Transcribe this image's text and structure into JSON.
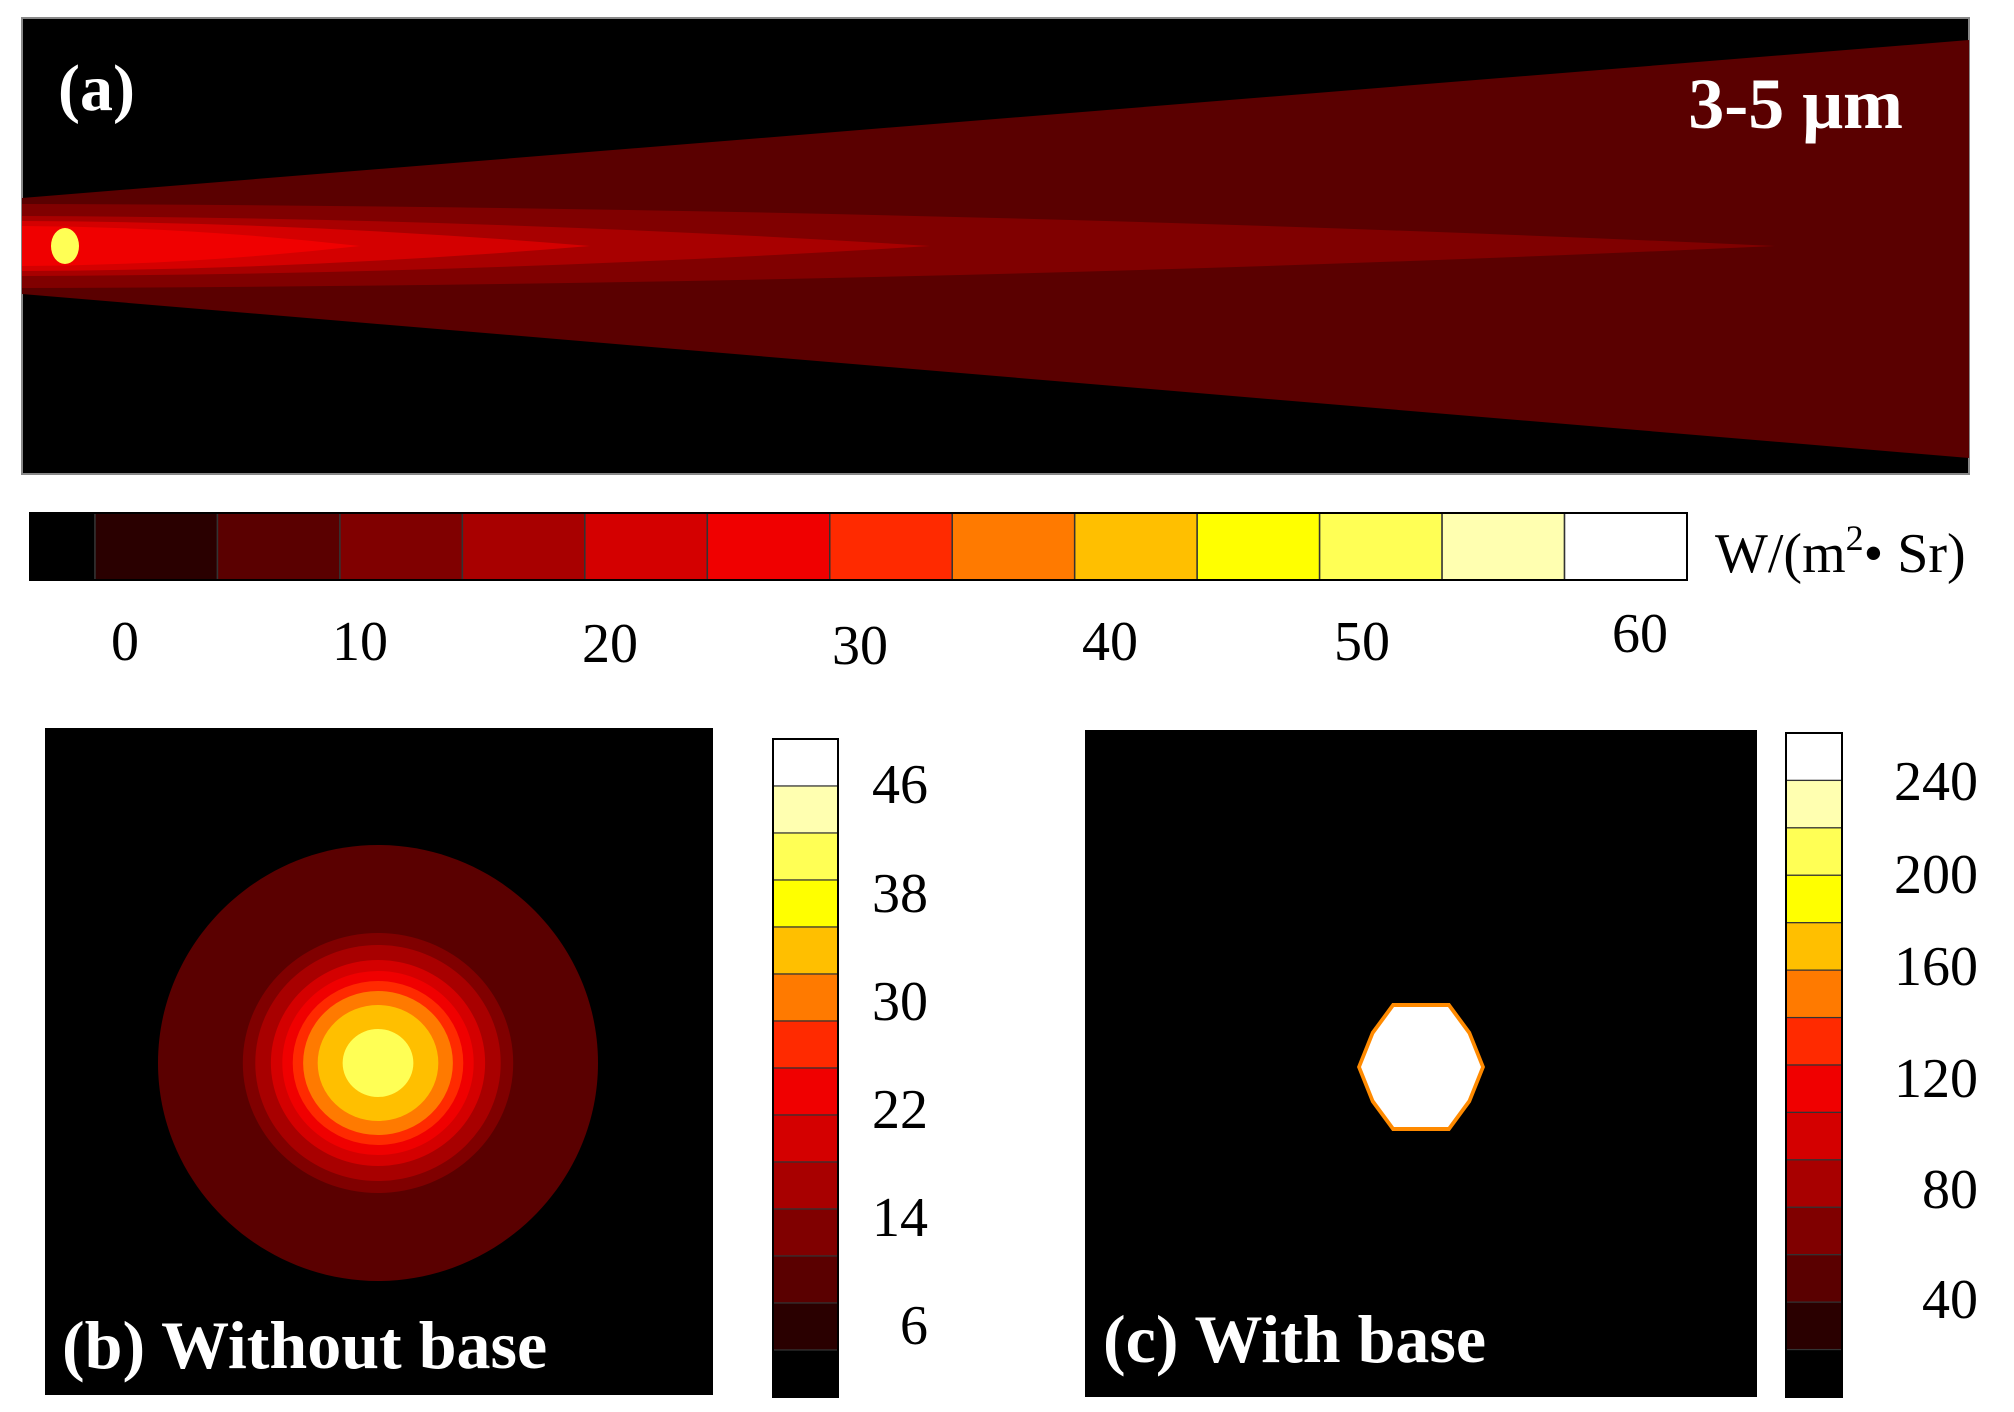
{
  "palette": [
    "#000000",
    "#2a0000",
    "#5a0000",
    "#800000",
    "#a80000",
    "#d40000",
    "#f00000",
    "#ff2a00",
    "#ff7a00",
    "#ffbf00",
    "#ffff00",
    "#ffff55",
    "#ffffb0",
    "#ffffff"
  ],
  "chart_data": [
    {
      "type": "heatmap",
      "panel": "(a)",
      "annotation": "3-5 μm",
      "colorbar": {
        "ticks": [
          "0",
          "10",
          "20",
          "30",
          "40",
          "50",
          "60"
        ],
        "range": [
          0,
          60
        ],
        "unit_base": "W/(m",
        "unit_sup": "2",
        "unit_tail": "• Sr)"
      },
      "plume_levels": [
        5,
        10,
        15,
        20,
        25
      ]
    },
    {
      "type": "heatmap",
      "panel": "(b)",
      "title": "Without base",
      "colorbar": {
        "ticks": [
          "46",
          "38",
          "30",
          "22",
          "14",
          "6"
        ],
        "range": [
          2,
          50
        ]
      },
      "ring_levels": [
        6,
        10,
        14,
        18,
        22,
        26,
        30,
        34,
        42
      ]
    },
    {
      "type": "heatmap",
      "panel": "(c)",
      "title": "With base",
      "colorbar": {
        "ticks": [
          "240",
          "200",
          "160",
          "120",
          "80",
          "40"
        ],
        "range": [
          0,
          260
        ]
      },
      "spot_level": 260
    }
  ]
}
